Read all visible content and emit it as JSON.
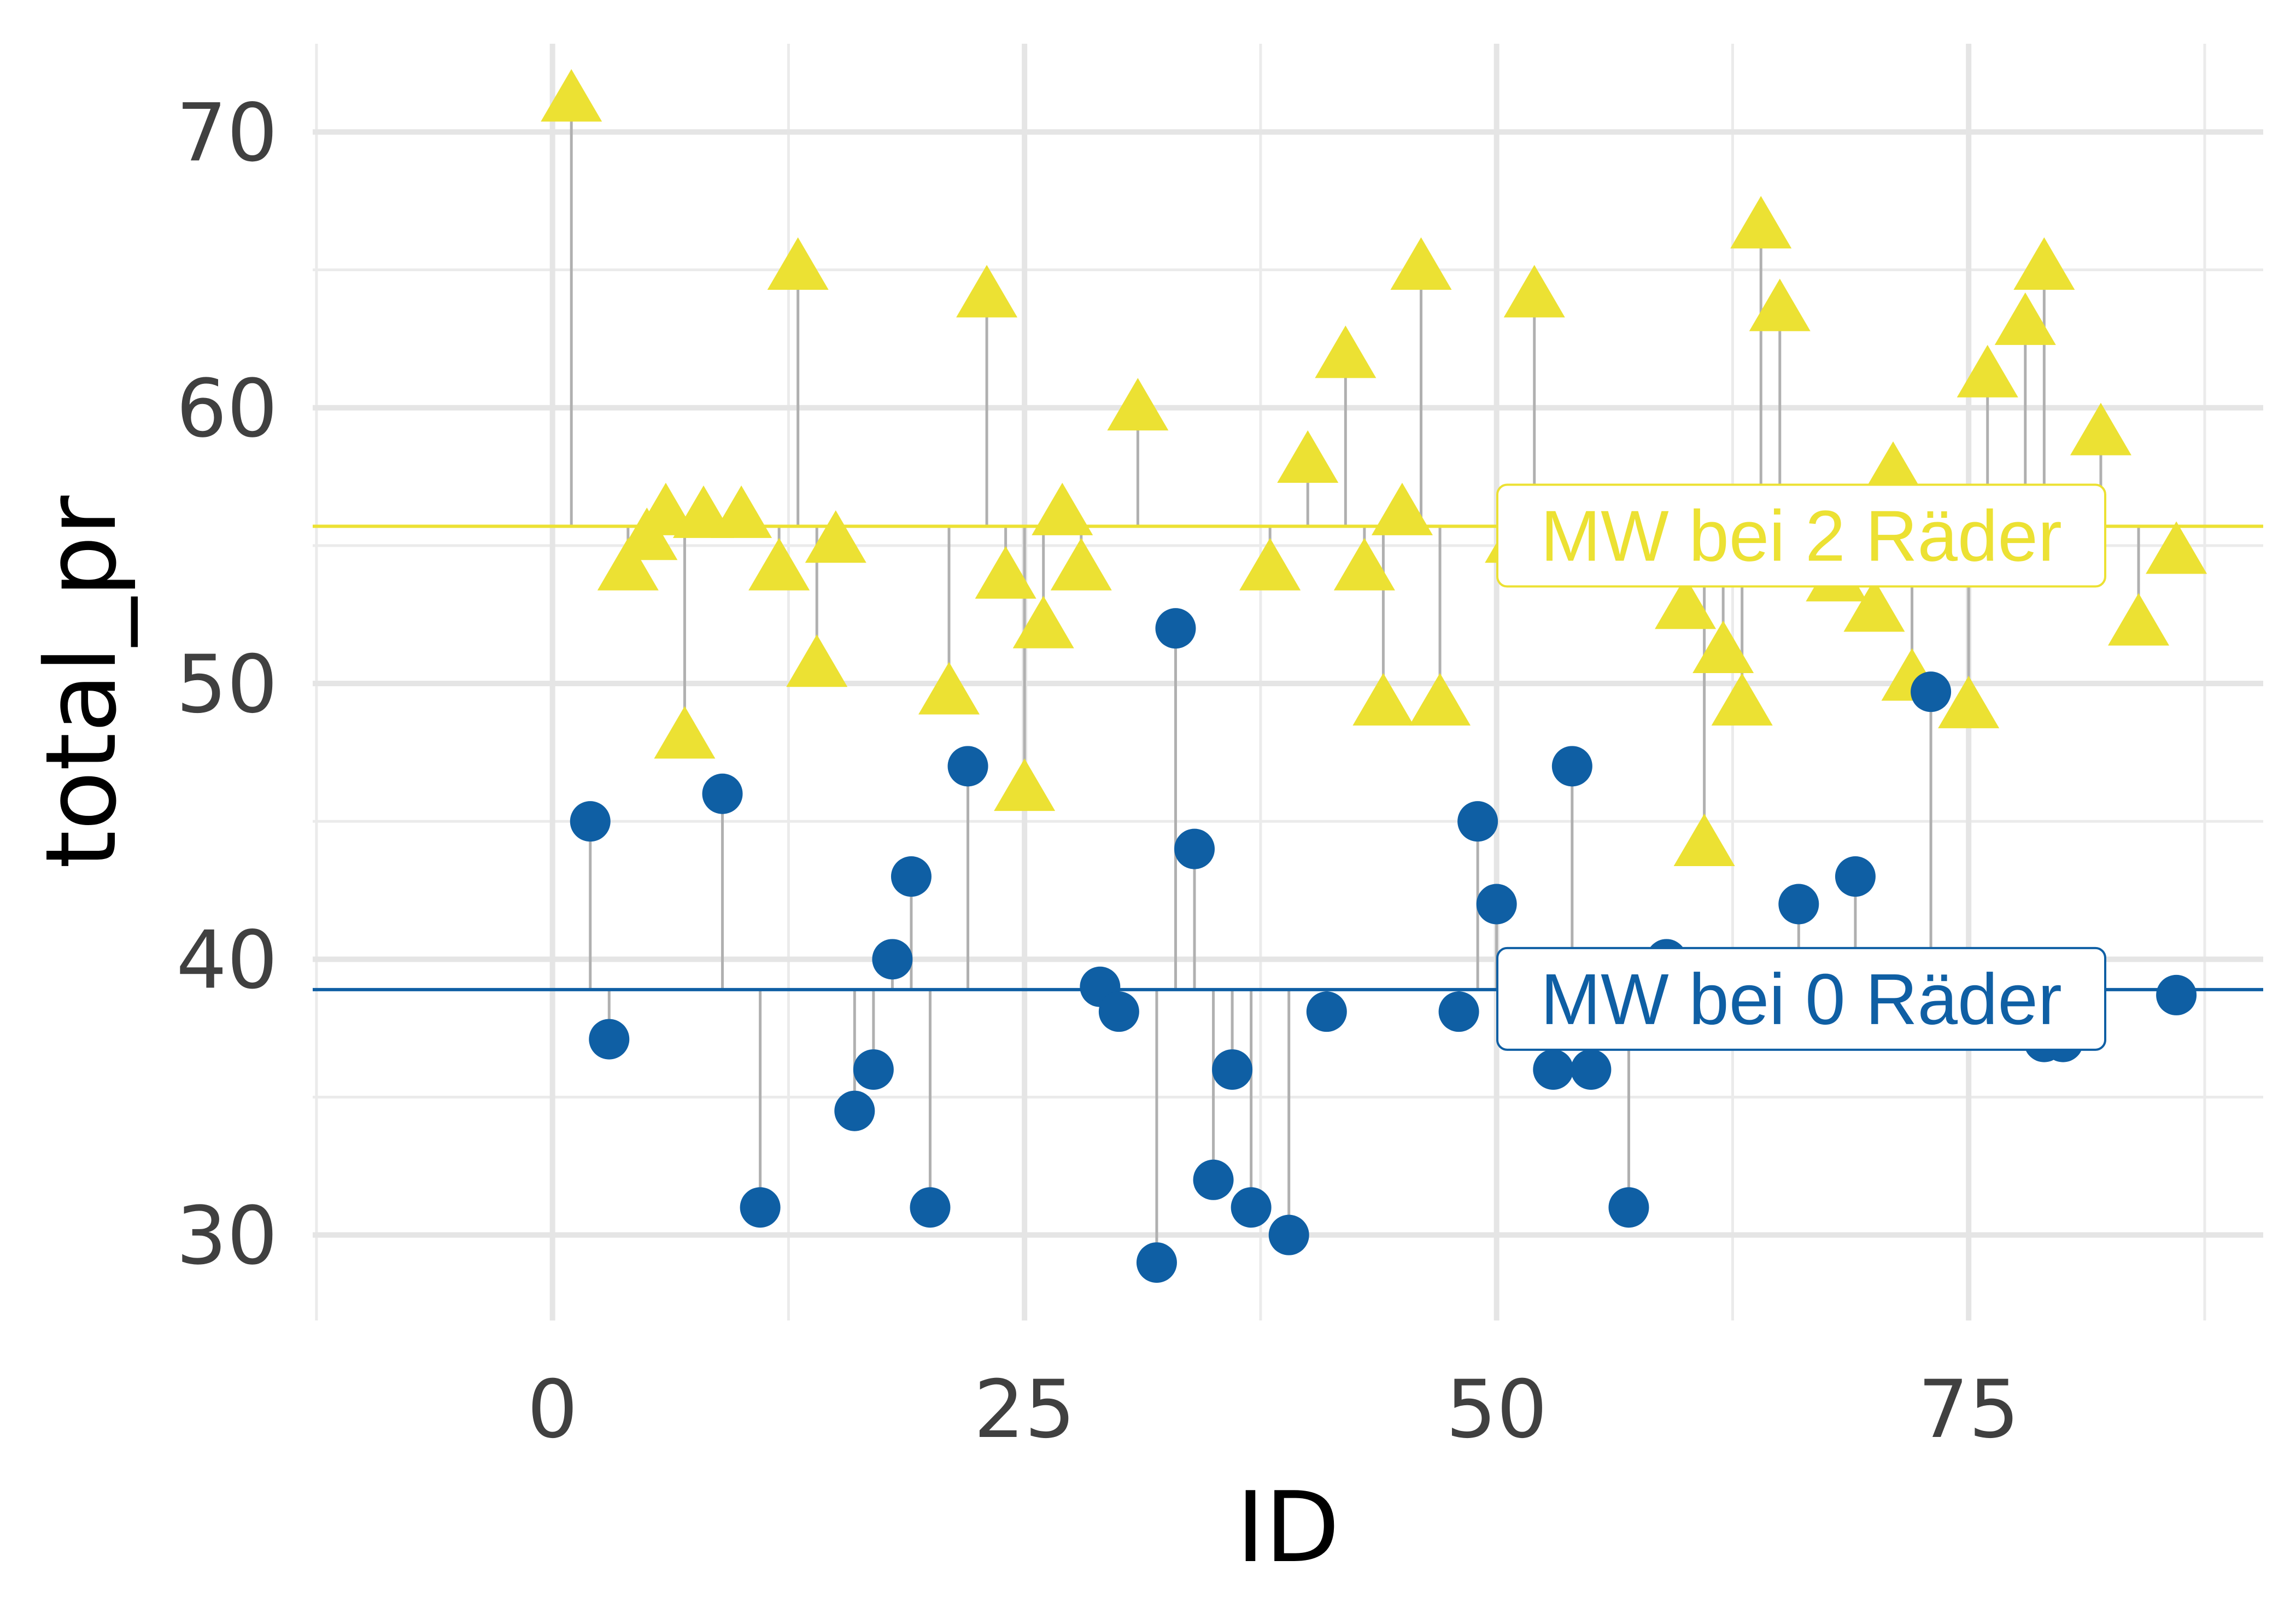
{
  "chart_data": {
    "type": "scatter",
    "xlabel": "ID",
    "ylabel": "total_pr",
    "xlim": [
      -12.7,
      90.6
    ],
    "ylim": [
      26.9,
      73.2
    ],
    "x_ticks": [
      0,
      25,
      50,
      75
    ],
    "x_tick_labels": [
      "0",
      "25",
      "50",
      "75"
    ],
    "y_ticks": [
      30,
      40,
      50,
      60,
      70
    ],
    "y_tick_labels": [
      "30",
      "40",
      "50",
      "60",
      "70"
    ],
    "grid": true,
    "legend": "none",
    "series": [
      {
        "group": "2",
        "marker": "triangle",
        "color": "#ECE133",
        "mean": 55.7,
        "mean_label": "MW bei 2 Räder",
        "points": [
          {
            "x": 1,
            "y": 71.1
          },
          {
            "x": 4,
            "y": 54.1
          },
          {
            "x": 5,
            "y": 55.2
          },
          {
            "x": 6,
            "y": 56.1
          },
          {
            "x": 7,
            "y": 48.0
          },
          {
            "x": 8,
            "y": 56.0
          },
          {
            "x": 10,
            "y": 56.0
          },
          {
            "x": 12,
            "y": 54.1
          },
          {
            "x": 13,
            "y": 65.0
          },
          {
            "x": 14,
            "y": 50.6
          },
          {
            "x": 15,
            "y": 55.1
          },
          {
            "x": 21,
            "y": 49.6
          },
          {
            "x": 23,
            "y": 64.0
          },
          {
            "x": 24,
            "y": 53.8
          },
          {
            "x": 25,
            "y": 46.1
          },
          {
            "x": 26,
            "y": 52.0
          },
          {
            "x": 27,
            "y": 56.1
          },
          {
            "x": 28,
            "y": 54.1
          },
          {
            "x": 31,
            "y": 59.9
          },
          {
            "x": 38,
            "y": 54.1
          },
          {
            "x": 40,
            "y": 58.0
          },
          {
            "x": 42,
            "y": 61.8
          },
          {
            "x": 43,
            "y": 54.1
          },
          {
            "x": 44,
            "y": 49.2
          },
          {
            "x": 45,
            "y": 56.1
          },
          {
            "x": 46,
            "y": 65.0
          },
          {
            "x": 47,
            "y": 49.2
          },
          {
            "x": 51,
            "y": 55.1
          },
          {
            "x": 52,
            "y": 64.0
          },
          {
            "x": 60,
            "y": 52.7
          },
          {
            "x": 61,
            "y": 44.1
          },
          {
            "x": 62,
            "y": 51.1
          },
          {
            "x": 63,
            "y": 49.2
          },
          {
            "x": 64,
            "y": 66.5
          },
          {
            "x": 65,
            "y": 63.5
          },
          {
            "x": 68,
            "y": 53.7
          },
          {
            "x": 70,
            "y": 52.6
          },
          {
            "x": 71,
            "y": 57.6
          },
          {
            "x": 72,
            "y": 50.1
          },
          {
            "x": 75,
            "y": 49.1
          },
          {
            "x": 76,
            "y": 61.1
          },
          {
            "x": 77,
            "y": 55.1
          },
          {
            "x": 78,
            "y": 63.0
          },
          {
            "x": 79,
            "y": 65.0
          },
          {
            "x": 82,
            "y": 59.0
          },
          {
            "x": 84,
            "y": 52.1
          },
          {
            "x": 86,
            "y": 54.7
          }
        ]
      },
      {
        "group": "0",
        "marker": "circle",
        "color": "#0F5FA4",
        "mean": 38.9,
        "mean_label": "MW bei 0 Räder",
        "points": [
          {
            "x": 2,
            "y": 45.0
          },
          {
            "x": 3,
            "y": 37.1
          },
          {
            "x": 9,
            "y": 46.0
          },
          {
            "x": 11,
            "y": 31.0
          },
          {
            "x": 16,
            "y": 34.5
          },
          {
            "x": 17,
            "y": 36.0
          },
          {
            "x": 18,
            "y": 40.0
          },
          {
            "x": 19,
            "y": 43.0
          },
          {
            "x": 20,
            "y": 31.0
          },
          {
            "x": 22,
            "y": 47.0
          },
          {
            "x": 29,
            "y": 39.0
          },
          {
            "x": 30,
            "y": 38.1
          },
          {
            "x": 32,
            "y": 29.0
          },
          {
            "x": 33,
            "y": 52.0
          },
          {
            "x": 34,
            "y": 44.0
          },
          {
            "x": 35,
            "y": 32.0
          },
          {
            "x": 36,
            "y": 36.0
          },
          {
            "x": 37,
            "y": 31.0
          },
          {
            "x": 39,
            "y": 30.0
          },
          {
            "x": 41,
            "y": 38.1
          },
          {
            "x": 48,
            "y": 38.1
          },
          {
            "x": 49,
            "y": 45.0
          },
          {
            "x": 50,
            "y": 42.0
          },
          {
            "x": 53,
            "y": 36.0
          },
          {
            "x": 54,
            "y": 47.0
          },
          {
            "x": 55,
            "y": 36.0
          },
          {
            "x": 57,
            "y": 31.0
          },
          {
            "x": 59,
            "y": 40.0
          },
          {
            "x": 66,
            "y": 42.0
          },
          {
            "x": 69,
            "y": 43.0
          },
          {
            "x": 73,
            "y": 49.7
          },
          {
            "x": 79,
            "y": 37.0
          },
          {
            "x": 80,
            "y": 37.0
          },
          {
            "x": 86,
            "y": 38.7
          }
        ]
      }
    ]
  }
}
